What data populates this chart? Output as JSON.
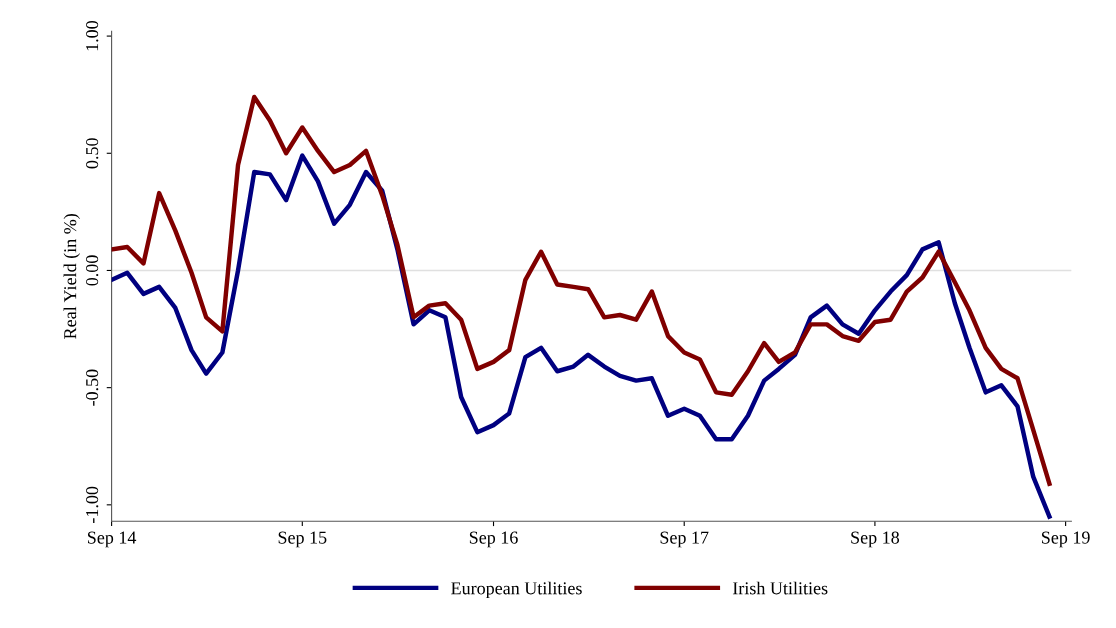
{
  "chart_data": {
    "type": "line",
    "ylabel": "Real Yield (in %)",
    "x": [
      "2014-09",
      "2014-10",
      "2014-11",
      "2014-12",
      "2015-01",
      "2015-02",
      "2015-03",
      "2015-04",
      "2015-05",
      "2015-06",
      "2015-07",
      "2015-08",
      "2015-09",
      "2015-10",
      "2015-11",
      "2015-12",
      "2016-01",
      "2016-02",
      "2016-03",
      "2016-04",
      "2016-05",
      "2016-06",
      "2016-07",
      "2016-08",
      "2016-09",
      "2016-10",
      "2016-11",
      "2016-12",
      "2017-01",
      "2017-02",
      "2017-03",
      "2017-04",
      "2017-05",
      "2017-06",
      "2017-07",
      "2017-08",
      "2017-09",
      "2017-10",
      "2017-11",
      "2017-12",
      "2018-01",
      "2018-02",
      "2018-03",
      "2018-04",
      "2018-05",
      "2018-06",
      "2018-07",
      "2018-08",
      "2018-09",
      "2018-10",
      "2018-11",
      "2018-12",
      "2019-01",
      "2019-02",
      "2019-03",
      "2019-04",
      "2019-05",
      "2019-06",
      "2019-07",
      "2019-08"
    ],
    "series": [
      {
        "name": "European Utilities",
        "color": "#000080",
        "values": [
          -0.04,
          -0.01,
          -0.1,
          -0.07,
          -0.16,
          -0.34,
          -0.44,
          -0.35,
          0.0,
          0.42,
          0.41,
          0.3,
          0.49,
          0.38,
          0.2,
          0.28,
          0.42,
          0.34,
          0.09,
          -0.23,
          -0.17,
          -0.2,
          -0.54,
          -0.69,
          -0.66,
          -0.61,
          -0.37,
          -0.33,
          -0.43,
          -0.41,
          -0.36,
          -0.41,
          -0.45,
          -0.47,
          -0.46,
          -0.62,
          -0.59,
          -0.62,
          -0.72,
          -0.72,
          -0.62,
          -0.47,
          -0.42,
          -0.36,
          -0.2,
          -0.15,
          -0.23,
          -0.27,
          -0.17,
          -0.09,
          -0.02,
          0.09,
          0.12,
          -0.14,
          -0.33,
          -0.52,
          -0.49,
          -0.58,
          -0.88,
          -1.05
        ]
      },
      {
        "name": "Irish Utilities",
        "color": "#800000",
        "values": [
          0.09,
          0.1,
          0.03,
          0.33,
          0.17,
          -0.01,
          -0.2,
          -0.26,
          0.45,
          0.74,
          0.64,
          0.5,
          0.61,
          0.51,
          0.42,
          0.45,
          0.51,
          0.32,
          0.11,
          -0.2,
          -0.15,
          -0.14,
          -0.21,
          -0.42,
          -0.39,
          -0.34,
          -0.04,
          0.08,
          -0.06,
          -0.07,
          -0.08,
          -0.2,
          -0.19,
          -0.21,
          -0.09,
          -0.28,
          -0.35,
          -0.38,
          -0.52,
          -0.53,
          -0.43,
          -0.31,
          -0.39,
          -0.35,
          -0.23,
          -0.23,
          -0.28,
          -0.3,
          -0.22,
          -0.21,
          -0.09,
          -0.03,
          0.08,
          -0.05,
          -0.17,
          -0.33,
          -0.42,
          -0.46,
          -0.68,
          -0.91
        ]
      }
    ],
    "xlim": [
      "2014-09",
      "2019-09-12"
    ],
    "xticks": [
      {
        "value": "2014-09",
        "label": "Sep 14"
      },
      {
        "value": "2015-09",
        "label": "Sep 15"
      },
      {
        "value": "2016-09",
        "label": "Sep 16"
      },
      {
        "value": "2017-09",
        "label": "Sep 17"
      },
      {
        "value": "2018-09",
        "label": "Sep 18"
      },
      {
        "value": "2019-09",
        "label": "Sep 19"
      }
    ],
    "ylim": [
      -1.07,
      1.02
    ],
    "yticks": [
      {
        "value": -1,
        "label": "-1.00"
      },
      {
        "value": -0.5,
        "label": "-0.50"
      },
      {
        "value": 0,
        "label": "0.00"
      },
      {
        "value": 0.5,
        "label": "0.50"
      },
      {
        "value": 1,
        "label": "1.00"
      }
    ],
    "ref_lines": [
      {
        "axis": "y",
        "value": 0,
        "color": "#e0e0e0"
      }
    ],
    "grid": false,
    "legend": "bottom",
    "line_style": "solid",
    "marker": "none"
  }
}
